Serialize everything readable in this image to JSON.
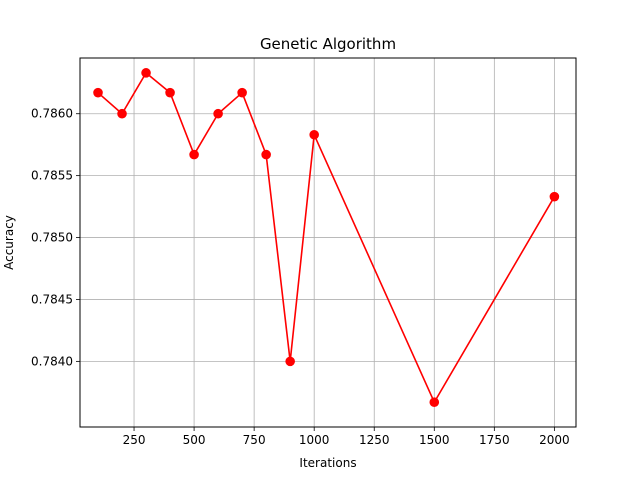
{
  "chart_data": {
    "type": "line",
    "title": "Genetic Algorithm",
    "xlabel": "Iterations",
    "ylabel": "Accuracy",
    "xlim": [
      25,
      2090
    ],
    "ylim": [
      0.78347,
      0.78645
    ],
    "xticks": [
      250,
      500,
      750,
      1000,
      1250,
      1500,
      1750,
      2000
    ],
    "yticks": [
      0.784,
      0.7845,
      0.785,
      0.7855,
      0.786
    ],
    "xtick_labels": [
      "250",
      "500",
      "750",
      "1000",
      "1250",
      "1500",
      "1750",
      "2000"
    ],
    "ytick_labels": [
      "0.7840",
      "0.7845",
      "0.7850",
      "0.7855",
      "0.7860"
    ],
    "grid": true,
    "series": [
      {
        "color": "#ff0000",
        "marker": "circle",
        "x": [
          100,
          200,
          300,
          400,
          500,
          600,
          700,
          800,
          900,
          1000,
          1500,
          2000
        ],
        "y": [
          0.78617,
          0.786,
          0.78633,
          0.78617,
          0.78567,
          0.786,
          0.78617,
          0.78567,
          0.784,
          0.78583,
          0.78367,
          0.78533
        ]
      }
    ]
  }
}
